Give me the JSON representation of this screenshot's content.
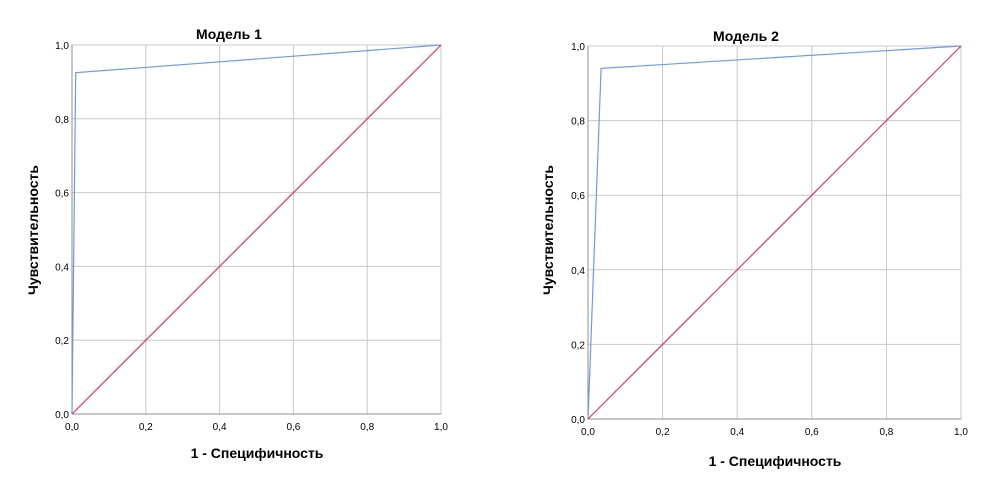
{
  "chart_data": [
    {
      "type": "line",
      "title": "Модель 1",
      "xlabel": "1 - Специфичность",
      "ylabel": "Чувствительность",
      "xlim": [
        0,
        1
      ],
      "ylim": [
        0,
        1
      ],
      "x_ticks": [
        "0,0",
        "0,2",
        "0,4",
        "0,6",
        "0,8",
        "1,0"
      ],
      "y_ticks": [
        "0,0",
        "0,2",
        "0,4",
        "0,6",
        "0,8",
        "1,0"
      ],
      "grid": true,
      "series": [
        {
          "color": "#6d9be3",
          "points": [
            [
              0,
              0
            ],
            [
              0.01,
              0.925
            ],
            [
              1,
              1
            ]
          ]
        },
        {
          "color": "#d9385e",
          "points": [
            [
              0,
              0
            ],
            [
              1,
              1
            ]
          ]
        }
      ]
    },
    {
      "type": "line",
      "title": "Модель 2",
      "xlabel": "1 - Специфичность",
      "ylabel": "Чувствительность",
      "xlim": [
        0,
        1
      ],
      "ylim": [
        0,
        1
      ],
      "x_ticks": [
        "0,0",
        "0,2",
        "0,4",
        "0,6",
        "0,8",
        "1,0"
      ],
      "y_ticks": [
        "0,0",
        "0,2",
        "0,4",
        "0,6",
        "0,8",
        "1,0"
      ],
      "grid": true,
      "series": [
        {
          "color": "#6d9be3",
          "points": [
            [
              0,
              0
            ],
            [
              0.035,
              0.94
            ],
            [
              1,
              1
            ]
          ]
        },
        {
          "color": "#d9385e",
          "points": [
            [
              0,
              0
            ],
            [
              1,
              1
            ]
          ]
        }
      ]
    }
  ]
}
